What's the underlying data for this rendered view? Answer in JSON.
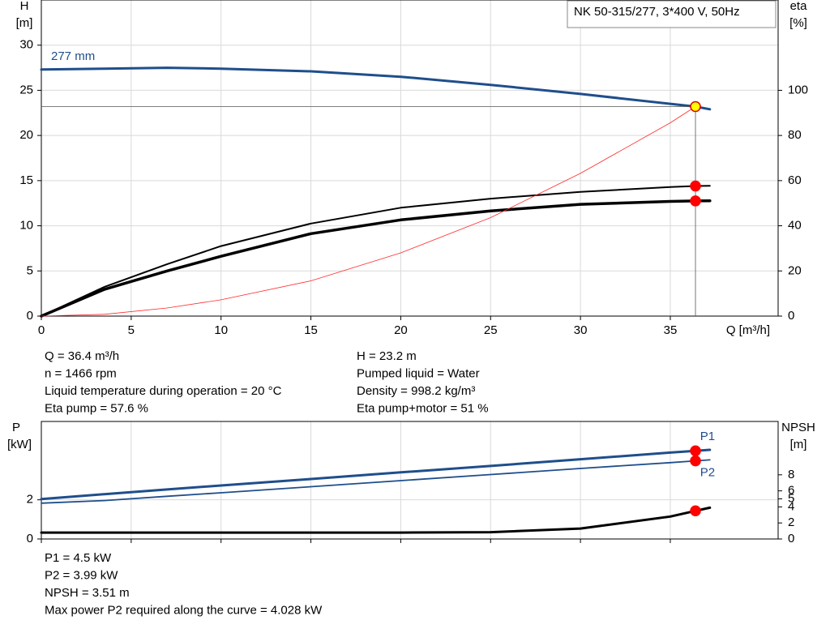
{
  "chart_data": [
    {
      "type": "line",
      "title": "NK 50-315/277, 3*400 V, 50Hz",
      "ylabel": "H",
      "ylabel_unit": "[m]",
      "y2label": "eta",
      "y2label_unit": "[%]",
      "xlabel": "Q [m³/h]",
      "x": [
        0,
        3.5,
        7,
        10,
        15,
        20,
        25,
        30,
        35,
        36.4,
        37.2
      ],
      "xlim": [
        0,
        41
      ],
      "xticks": [
        0,
        5,
        10,
        15,
        20,
        25,
        30,
        35
      ],
      "ylim": [
        0,
        35
      ],
      "yticks": [
        0,
        5,
        10,
        15,
        20,
        25,
        30
      ],
      "y2lim": [
        0,
        140
      ],
      "y2ticks": [
        0,
        20,
        40,
        60,
        80,
        100
      ],
      "grid": true,
      "series": [
        {
          "name": "277 mm",
          "name_position": "start-above",
          "color": "#1f4e8c",
          "line_width": 3,
          "values": [
            27.3,
            27.4,
            27.5,
            27.4,
            27.1,
            26.5,
            25.6,
            24.6,
            23.5,
            23.2,
            22.9
          ]
        },
        {
          "color": "#000000",
          "line_width": 2,
          "axis": "y2",
          "values": [
            0,
            12.9,
            23,
            31,
            41,
            48,
            52,
            55,
            57.2,
            57.6,
            57.7
          ]
        },
        {
          "color": "#000000",
          "line_width": 3.5,
          "axis": "y2",
          "values": [
            0,
            11.8,
            20,
            26.5,
            36.5,
            42.6,
            46.6,
            49.5,
            50.8,
            51,
            51.1
          ]
        },
        {
          "color": "#ff2a2a",
          "line_width": 0.8,
          "values": [
            0,
            0.2,
            0.9,
            1.8,
            3.9,
            7,
            10.9,
            15.8,
            21.4,
            23.2,
            null
          ]
        }
      ],
      "points": [
        {
          "x": 36.4,
          "y": 23.2,
          "color": "#ffff00",
          "guides": true
        },
        {
          "x": 36.4,
          "y": 57.6,
          "axis": "y2",
          "color": "#ff0000"
        },
        {
          "x": 36.4,
          "y": 51,
          "axis": "y2",
          "color": "#ff0000"
        }
      ]
    },
    {
      "type": "line",
      "ylabel": "P",
      "ylabel_unit": "[kW]",
      "y2label": "NPSH",
      "y2label_unit": "[m]",
      "x": [
        0,
        3.5,
        7,
        10,
        15,
        20,
        25,
        30,
        35,
        36.4,
        37.2
      ],
      "xlim": [
        0,
        41
      ],
      "xticks": [
        0,
        5,
        10,
        15,
        20,
        25,
        30,
        35
      ],
      "ylim": [
        0,
        6
      ],
      "yticks": [
        0,
        2
      ],
      "y2lim": [
        0,
        14.65
      ],
      "y2ticks": [
        0,
        2,
        4,
        5,
        6,
        8
      ],
      "grid": true,
      "series": [
        {
          "name": "P1",
          "name_position": "end-above",
          "color": "#1f4e8c",
          "line_width": 3,
          "values": [
            2.04,
            2.29,
            2.53,
            2.73,
            3.06,
            3.4,
            3.73,
            4.07,
            4.41,
            4.5,
            4.55
          ]
        },
        {
          "name": "P2",
          "name_position": "end-below",
          "color": "#1f4e8c",
          "line_width": 1.8,
          "values": [
            1.83,
            1.96,
            2.18,
            2.36,
            2.67,
            2.98,
            3.29,
            3.6,
            3.9,
            3.99,
            4.04
          ]
        },
        {
          "color": "#000000",
          "line_width": 3,
          "axis": "y2",
          "values": [
            0.8,
            0.8,
            0.8,
            0.8,
            0.8,
            0.8,
            0.85,
            1.3,
            2.8,
            3.51,
            3.9
          ]
        }
      ],
      "points": [
        {
          "x": 36.4,
          "y": 4.5,
          "color": "#ff0000"
        },
        {
          "x": 36.4,
          "y": 3.99,
          "color": "#ff0000"
        },
        {
          "x": 36.4,
          "y": 3.51,
          "axis": "y2",
          "color": "#ff0000"
        }
      ]
    }
  ],
  "duty_info": {
    "left": [
      "Q = 36.4 m³/h",
      "n = 1466 rpm",
      "Liquid temperature during operation = 20 °C",
      "Eta pump = 57.6 %"
    ],
    "right": [
      "H = 23.2 m",
      "Pumped liquid = Water",
      "Density = 998.2 kg/m³",
      "Eta pump+motor = 51 %"
    ]
  },
  "power_info": [
    "P1 = 4.5 kW",
    "P2 = 3.99 kW",
    "NPSH = 3.51 m",
    "Max power P2 required along the curve = 4.028 kW"
  ]
}
